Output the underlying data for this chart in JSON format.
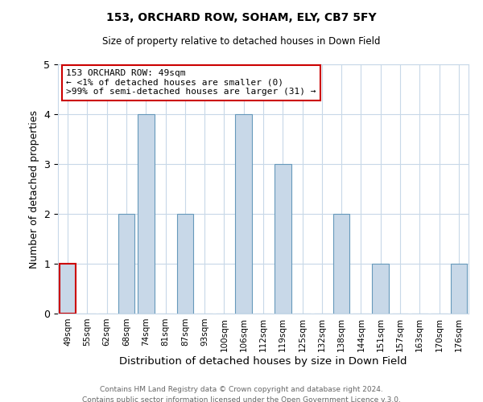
{
  "title1": "153, ORCHARD ROW, SOHAM, ELY, CB7 5FY",
  "title2": "Size of property relative to detached houses in Down Field",
  "xlabel": "Distribution of detached houses by size in Down Field",
  "ylabel": "Number of detached properties",
  "categories": [
    "49sqm",
    "55sqm",
    "62sqm",
    "68sqm",
    "74sqm",
    "81sqm",
    "87sqm",
    "93sqm",
    "100sqm",
    "106sqm",
    "112sqm",
    "119sqm",
    "125sqm",
    "132sqm",
    "138sqm",
    "144sqm",
    "151sqm",
    "157sqm",
    "163sqm",
    "170sqm",
    "176sqm"
  ],
  "values": [
    1,
    0,
    0,
    2,
    4,
    0,
    2,
    0,
    0,
    4,
    0,
    3,
    0,
    0,
    2,
    0,
    1,
    0,
    0,
    0,
    1
  ],
  "bar_color": "#c8d8e8",
  "bar_edge_color": "#6699bb",
  "highlight_index": 0,
  "highlight_edge_color": "#cc0000",
  "ylim": [
    0,
    5
  ],
  "yticks": [
    0,
    1,
    2,
    3,
    4,
    5
  ],
  "annotation_title": "153 ORCHARD ROW: 49sqm",
  "annotation_line1": "← <1% of detached houses are smaller (0)",
  "annotation_line2": ">99% of semi-detached houses are larger (31) →",
  "annotation_box_color": "#ffffff",
  "annotation_box_edge_color": "#cc0000",
  "footer1": "Contains HM Land Registry data © Crown copyright and database right 2024.",
  "footer2": "Contains public sector information licensed under the Open Government Licence v.3.0.",
  "background_color": "#ffffff",
  "grid_color": "#c8d8e8"
}
